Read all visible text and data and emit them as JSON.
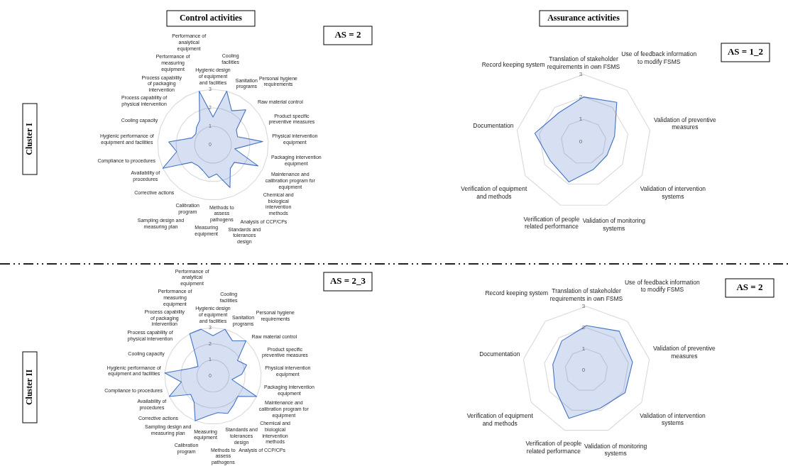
{
  "chart_data": [
    {
      "type": "radar",
      "title": "Control activities",
      "ylabel": "Cluster I",
      "annotations": [
        "AS = 2"
      ],
      "categories": [
        "Hygienic design of equipment and facilities",
        "Cooling facilities",
        "Sanitation programs",
        "Personal hygiene requirements",
        "Raw material control",
        "Product specific preventive measures",
        "Physical intervention equipment",
        "Packaging intervention equipment",
        "Maintenance and calibration program for equipment",
        "Chemical and biological intervention methods",
        "Analysis of CCP/CPs",
        "Standards and tolerances design",
        "Methods to assess pathogens",
        "Measuring equipment",
        "Calibration program",
        "Sampling design and measuring plan",
        "Corrective actions",
        "Availability of procedures",
        "Compliance to procedures",
        "Hygienic performance of equipment and facilities",
        "Cooling capacity",
        "Process capability of physical intervention",
        "Process capability of packaging intervention",
        "Performance of measuring equipment",
        "Performance of analytical equipment"
      ],
      "series": [
        {
          "color": "#4472c4",
          "values": [
            1.5,
            3,
            2.1,
            2.6,
            1.5,
            1.4,
            2.7,
            1.2,
            2.7,
            1.5,
            1.6,
            2.5,
            1.6,
            1.8,
            1.5,
            1.4,
            1.5,
            3,
            2,
            2.4,
            1.2,
            1.1,
            1.3,
            1.5,
            3
          ]
        }
      ],
      "ylim": [
        0,
        3
      ],
      "yticks": [
        0,
        1,
        2,
        3
      ],
      "grid": true
    },
    {
      "type": "radar",
      "title": "Assurance activities",
      "annotations": [
        "AS = 1_2"
      ],
      "categories": [
        "Translation of stakeholder requirements in own FSMS",
        "Use of feedback information to modify FSMS",
        "Validation of preventive measures",
        "Validation of intervention systems",
        "Validation of monitoring systems",
        "Verification of people related performance",
        "Verification of equipment and methods",
        "Documentation",
        "Record keeping system"
      ],
      "series": [
        {
          "color": "#4472c4",
          "values": [
            2,
            2.3,
            1.4,
            1.2,
            1.3,
            1.9,
            1.7,
            2.2,
            1.7
          ]
        }
      ],
      "ylim": [
        0,
        3
      ],
      "yticks": [
        0,
        1,
        2,
        3
      ],
      "grid": true
    },
    {
      "type": "radar",
      "ylabel": "Cluster II",
      "annotations": [
        "AS = 2_3"
      ],
      "categories": [
        "Hygienic design of equipment and facilities",
        "Cooling facilities",
        "Sanitation programs",
        "Personal hygiene requirements",
        "Raw material control",
        "Product specific preventive measures",
        "Physical intervention equipment",
        "Packaging intervention equipment",
        "Maintenance and calibration program for equipment",
        "Chemical and biological intervention methods",
        "Analysis of CCP/CPs",
        "Standards and tolerances design",
        "Methods to assess pathogens",
        "Measuring equipment",
        "Calibration program",
        "Sampling design and measuring plan",
        "Corrective actions",
        "Availability of procedures",
        "Compliance to procedures",
        "Hygienic performance of equipment and facilities",
        "Cooling capacity",
        "Process capability of physical intervention",
        "Process capability of packaging intervention",
        "Performance of measuring equipment",
        "Performance of analytical equipment"
      ],
      "series": [
        {
          "color": "#4472c4",
          "values": [
            2.5,
            3,
            2.5,
            3,
            1.8,
            2.2,
            1.8,
            1.2,
            3,
            2,
            2.2,
            2.5,
            2.3,
            2.5,
            3,
            2,
            1.8,
            3,
            2,
            3,
            1.5,
            1.1,
            1.5,
            3,
            3
          ]
        }
      ],
      "ylim": [
        0,
        3
      ],
      "yticks": [
        0,
        1,
        2,
        3
      ],
      "grid": true
    },
    {
      "type": "radar",
      "annotations": [
        "AS = 2"
      ],
      "categories": [
        "Translation of stakeholder requirements in own FSMS",
        "Use of feedback information to modify FSMS",
        "Validation of preventive measures",
        "Validation of intervention systems",
        "Validation of monitoring systems",
        "Verification of people related performance",
        "Verification of equipment and methods",
        "Documentation",
        "Record keeping system"
      ],
      "series": [
        {
          "color": "#4472c4",
          "values": [
            2.1,
            2.4,
            2.2,
            2.1,
            1.9,
            2.4,
            1.7,
            1.6,
            1.8
          ]
        }
      ],
      "ylim": [
        0,
        3
      ],
      "yticks": [
        0,
        1,
        2,
        3
      ],
      "grid": true
    }
  ]
}
